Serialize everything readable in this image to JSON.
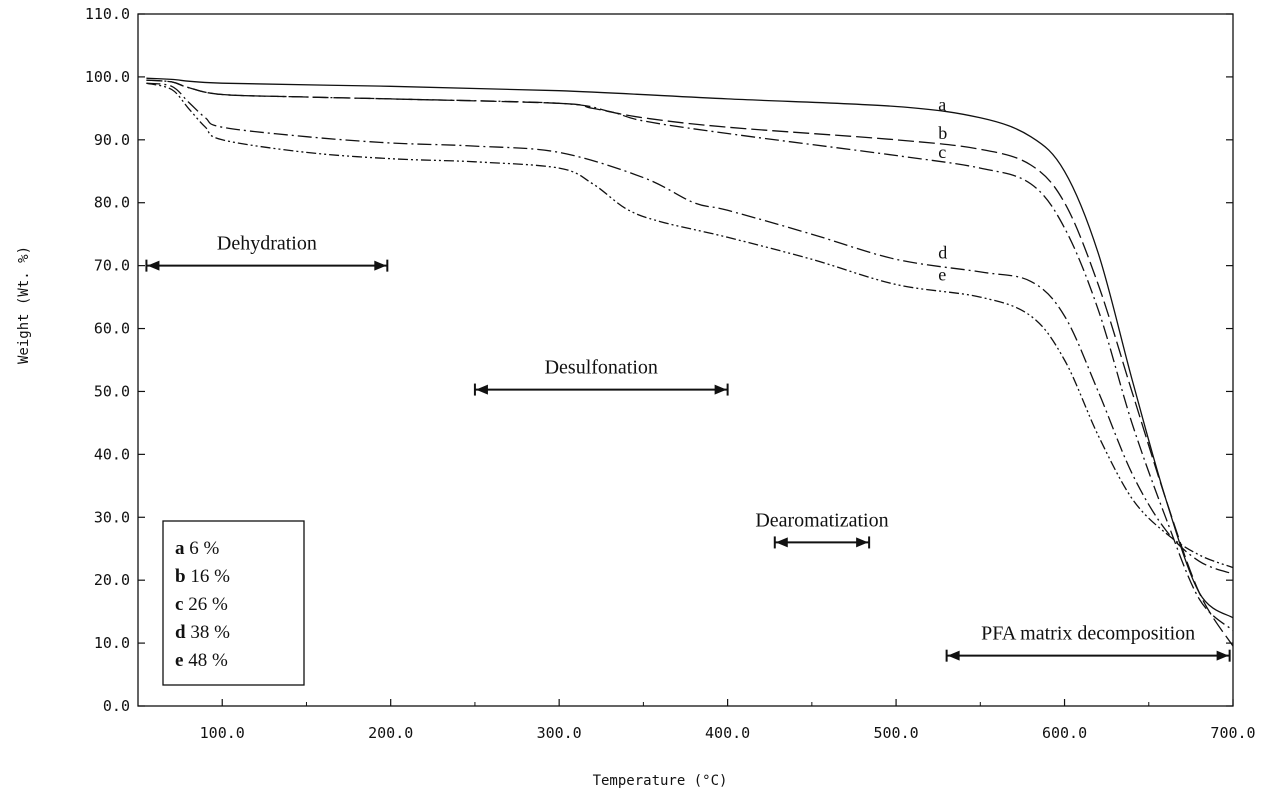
{
  "chart_data": {
    "type": "line",
    "xlabel": "Temperature (°C)",
    "ylabel": "Weight (Wt. %)",
    "xlim": [
      50,
      700
    ],
    "ylim": [
      0,
      110
    ],
    "x_ticks": [
      "100.0",
      "200.0",
      "300.0",
      "400.0",
      "500.0",
      "600.0",
      "700.0"
    ],
    "y_ticks": [
      "0.0",
      "10.0",
      "20.0",
      "30.0",
      "40.0",
      "50.0",
      "60.0",
      "70.0",
      "80.0",
      "90.0",
      "100.0",
      "110.0"
    ],
    "grid": false,
    "series": [
      {
        "name": "a",
        "dash": "solid",
        "x": [
          55,
          70,
          100,
          200,
          300,
          400,
          500,
          550,
          580,
          600,
          620,
          640,
          660,
          680,
          700
        ],
        "y": [
          99.8,
          99.6,
          99.0,
          98.5,
          97.8,
          96.5,
          95.3,
          93.5,
          90.5,
          85,
          72,
          52,
          33,
          18,
          14
        ]
      },
      {
        "name": "b",
        "dash": "long-dash",
        "x": [
          55,
          70,
          80,
          100,
          150,
          200,
          300,
          320,
          350,
          400,
          500,
          550,
          580,
          600,
          620,
          640,
          660,
          680,
          700
        ],
        "y": [
          99.5,
          99.2,
          98.3,
          97.2,
          96.8,
          96.5,
          95.8,
          95.0,
          93.5,
          92.0,
          90.0,
          88.5,
          86.0,
          80.0,
          67.0,
          50.0,
          33.0,
          18.0,
          9.5
        ]
      },
      {
        "name": "c",
        "dash": "dash-dot",
        "x": [
          55,
          70,
          80,
          100,
          150,
          200,
          300,
          330,
          350,
          400,
          500,
          550,
          580,
          600,
          620,
          640,
          660,
          680,
          700
        ],
        "y": [
          99.5,
          99.2,
          98.3,
          97.2,
          96.8,
          96.5,
          95.8,
          94.5,
          93.0,
          91.0,
          87.5,
          85.5,
          83.0,
          76.0,
          63.0,
          45.0,
          30.0,
          17.0,
          12.0
        ]
      },
      {
        "name": "d",
        "dash": "dash-dot",
        "x": [
          55,
          70,
          80,
          90,
          100,
          150,
          200,
          250,
          300,
          350,
          380,
          400,
          450,
          500,
          550,
          580,
          600,
          620,
          640,
          660,
          680,
          700
        ],
        "y": [
          99.0,
          98.5,
          96.0,
          93.5,
          92.0,
          90.5,
          89.5,
          89.0,
          88.0,
          84.0,
          80.0,
          78.8,
          75.0,
          71.0,
          69.0,
          67.5,
          62.0,
          50.0,
          37.0,
          28.0,
          23.0,
          21.0
        ]
      },
      {
        "name": "e",
        "dash": "dash-dot-dot",
        "x": [
          55,
          70,
          80,
          90,
          100,
          150,
          200,
          250,
          300,
          320,
          340,
          360,
          400,
          450,
          500,
          550,
          580,
          600,
          620,
          640,
          660,
          680,
          700
        ],
        "y": [
          99.0,
          98.0,
          95.0,
          92.0,
          90.0,
          88.0,
          87.0,
          86.5,
          85.5,
          83.0,
          79.0,
          77.0,
          74.5,
          71.0,
          67.0,
          65.0,
          62.0,
          55.0,
          43.0,
          33.0,
          27.5,
          24.0,
          22.0
        ]
      }
    ],
    "curve_labels": [
      {
        "text": "a",
        "x": 525,
        "y": 94.0
      },
      {
        "text": "b",
        "x": 525,
        "y": 89.5
      },
      {
        "text": "c",
        "x": 525,
        "y": 86.5
      },
      {
        "text": "d",
        "x": 525,
        "y": 70.5
      },
      {
        "text": "e",
        "x": 525,
        "y": 67.0
      }
    ],
    "annotations": [
      {
        "text": "Dehydration",
        "x1": 55,
        "x2": 198,
        "y": 70.0
      },
      {
        "text": "Desulfonation",
        "x1": 250,
        "x2": 400,
        "y": 50.3
      },
      {
        "text": "Dearomatization",
        "x1": 428,
        "x2": 484,
        "y": 26.0
      },
      {
        "text": "PFA matrix decomposition",
        "x1": 530,
        "x2": 698,
        "y": 8.0
      }
    ],
    "legend": {
      "placement": "bottom-left",
      "entries": [
        {
          "key": "a",
          "value": "6 %"
        },
        {
          "key": "b",
          "value": "16 %"
        },
        {
          "key": "c",
          "value": "26 %"
        },
        {
          "key": "d",
          "value": "38 %"
        },
        {
          "key": "e",
          "value": "48 %"
        }
      ]
    }
  }
}
